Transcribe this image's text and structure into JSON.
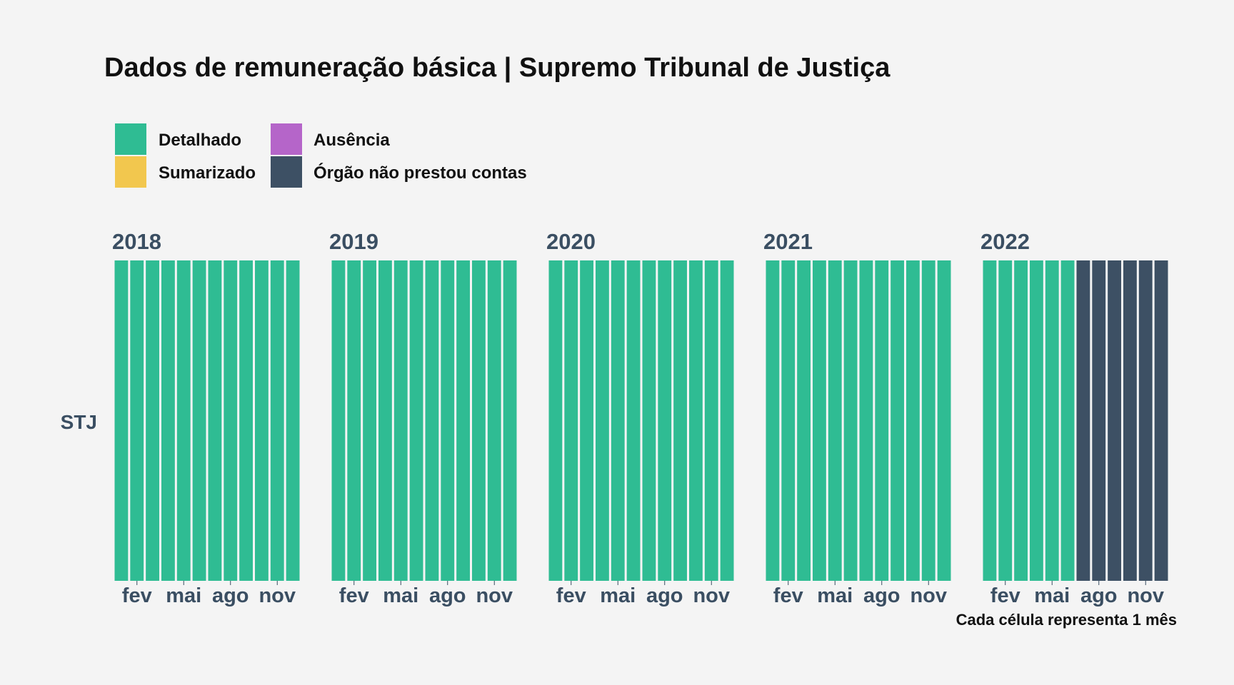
{
  "chart_data": {
    "type": "heatmap",
    "title": "Dados de remuneração básica | Supremo Tribunal de Justiça",
    "caption": "Cada célula representa 1 mês",
    "row_label": "STJ",
    "legend": [
      {
        "label": "Detalhado",
        "color": "#2fbc93"
      },
      {
        "label": "Sumarizado",
        "color": "#f2c74e"
      },
      {
        "label": "Ausência",
        "color": "#b565c9"
      },
      {
        "label": "Órgão não prestou contas",
        "color": "#3d5064"
      }
    ],
    "month_ticks": [
      {
        "month": 2,
        "label": "fev"
      },
      {
        "month": 5,
        "label": "mai"
      },
      {
        "month": 8,
        "label": "ago"
      },
      {
        "month": 11,
        "label": "nov"
      }
    ],
    "years": [
      {
        "year": "2018",
        "months": [
          "Detalhado",
          "Detalhado",
          "Detalhado",
          "Detalhado",
          "Detalhado",
          "Detalhado",
          "Detalhado",
          "Detalhado",
          "Detalhado",
          "Detalhado",
          "Detalhado",
          "Detalhado"
        ]
      },
      {
        "year": "2019",
        "months": [
          "Detalhado",
          "Detalhado",
          "Detalhado",
          "Detalhado",
          "Detalhado",
          "Detalhado",
          "Detalhado",
          "Detalhado",
          "Detalhado",
          "Detalhado",
          "Detalhado",
          "Detalhado"
        ]
      },
      {
        "year": "2020",
        "months": [
          "Detalhado",
          "Detalhado",
          "Detalhado",
          "Detalhado",
          "Detalhado",
          "Detalhado",
          "Detalhado",
          "Detalhado",
          "Detalhado",
          "Detalhado",
          "Detalhado",
          "Detalhado"
        ]
      },
      {
        "year": "2021",
        "months": [
          "Detalhado",
          "Detalhado",
          "Detalhado",
          "Detalhado",
          "Detalhado",
          "Detalhado",
          "Detalhado",
          "Detalhado",
          "Detalhado",
          "Detalhado",
          "Detalhado",
          "Detalhado"
        ]
      },
      {
        "year": "2022",
        "months": [
          "Detalhado",
          "Detalhado",
          "Detalhado",
          "Detalhado",
          "Detalhado",
          "Detalhado",
          "Órgão não prestou contas",
          "Órgão não prestou contas",
          "Órgão não prestou contas",
          "Órgão não prestou contas",
          "Órgão não prestou contas",
          "Órgão não prestou contas"
        ]
      }
    ]
  }
}
